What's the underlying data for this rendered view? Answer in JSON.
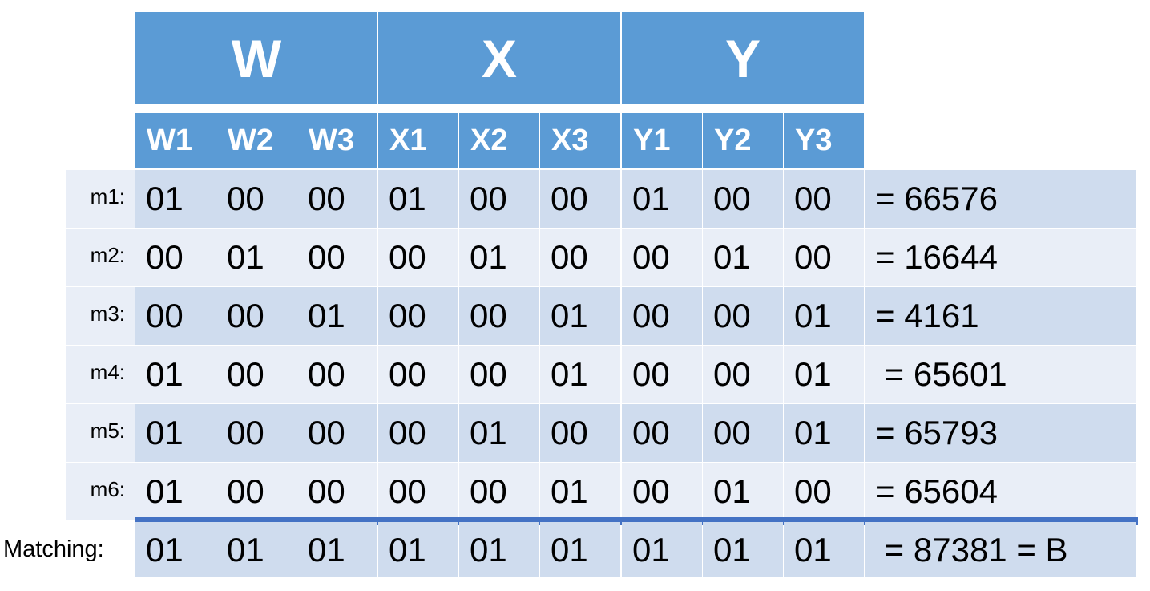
{
  "groups": [
    {
      "label": "W"
    },
    {
      "label": "X"
    },
    {
      "label": "Y"
    }
  ],
  "columns": [
    {
      "label": "W1"
    },
    {
      "label": "W2"
    },
    {
      "label": "W3"
    },
    {
      "label": "X1"
    },
    {
      "label": "X2"
    },
    {
      "label": "X3"
    },
    {
      "label": "Y1"
    },
    {
      "label": "Y2"
    },
    {
      "label": "Y3"
    }
  ],
  "rows": [
    {
      "label": "m1:",
      "values": [
        "01",
        "00",
        "00",
        "01",
        "00",
        "00",
        "01",
        "00",
        "00"
      ],
      "result": "= 66576"
    },
    {
      "label": "m2:",
      "values": [
        "00",
        "01",
        "00",
        "00",
        "01",
        "00",
        "00",
        "01",
        "00"
      ],
      "result": "= 16644"
    },
    {
      "label": "m3:",
      "values": [
        "00",
        "00",
        "01",
        "00",
        "00",
        "01",
        "00",
        "00",
        "01"
      ],
      "result": "= 4161"
    },
    {
      "label": "m4:",
      "values": [
        "01",
        "00",
        "00",
        "00",
        "00",
        "01",
        "00",
        "00",
        "01"
      ],
      "result": " = 65601"
    },
    {
      "label": "m5:",
      "values": [
        "01",
        "00",
        "00",
        "00",
        "01",
        "00",
        "00",
        "00",
        "01"
      ],
      "result": "= 65793"
    },
    {
      "label": "m6:",
      "values": [
        "01",
        "00",
        "00",
        "00",
        "00",
        "01",
        "00",
        "01",
        "00"
      ],
      "result": "= 65604"
    }
  ],
  "matching": {
    "label": "Matching:",
    "values": [
      "01",
      "01",
      "01",
      "01",
      "01",
      "01",
      "01",
      "01",
      "01"
    ],
    "result": " = 87381 = B"
  },
  "colors": {
    "header_blue": "#5b9bd5",
    "row_dark": "#cfdcee",
    "row_light": "#e9eef7",
    "divider_line": "#4472c4"
  }
}
